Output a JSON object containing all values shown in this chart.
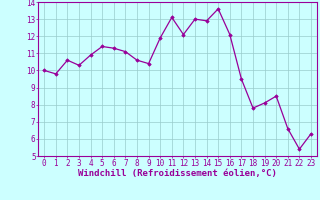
{
  "x": [
    0,
    1,
    2,
    3,
    4,
    5,
    6,
    7,
    8,
    9,
    10,
    11,
    12,
    13,
    14,
    15,
    16,
    17,
    18,
    19,
    20,
    21,
    22,
    23
  ],
  "y": [
    10.0,
    9.8,
    10.6,
    10.3,
    10.9,
    11.4,
    11.3,
    11.1,
    10.6,
    10.4,
    11.9,
    13.1,
    12.1,
    13.0,
    12.9,
    13.6,
    12.1,
    9.5,
    7.8,
    8.1,
    8.5,
    6.6,
    5.4,
    6.3
  ],
  "line_color": "#990099",
  "marker": "D",
  "marker_size": 1.8,
  "line_width": 0.9,
  "bg_color": "#ccffff",
  "grid_color": "#99cccc",
  "xlabel": "Windchill (Refroidissement éolien,°C)",
  "xlabel_color": "#990099",
  "tick_color": "#990099",
  "ylim": [
    5,
    14
  ],
  "xlim": [
    -0.5,
    23.5
  ],
  "yticks": [
    5,
    6,
    7,
    8,
    9,
    10,
    11,
    12,
    13,
    14
  ],
  "xticks": [
    0,
    1,
    2,
    3,
    4,
    5,
    6,
    7,
    8,
    9,
    10,
    11,
    12,
    13,
    14,
    15,
    16,
    17,
    18,
    19,
    20,
    21,
    22,
    23
  ],
  "axis_color": "#990099",
  "font_size": 5.5,
  "xlabel_font_size": 6.5
}
